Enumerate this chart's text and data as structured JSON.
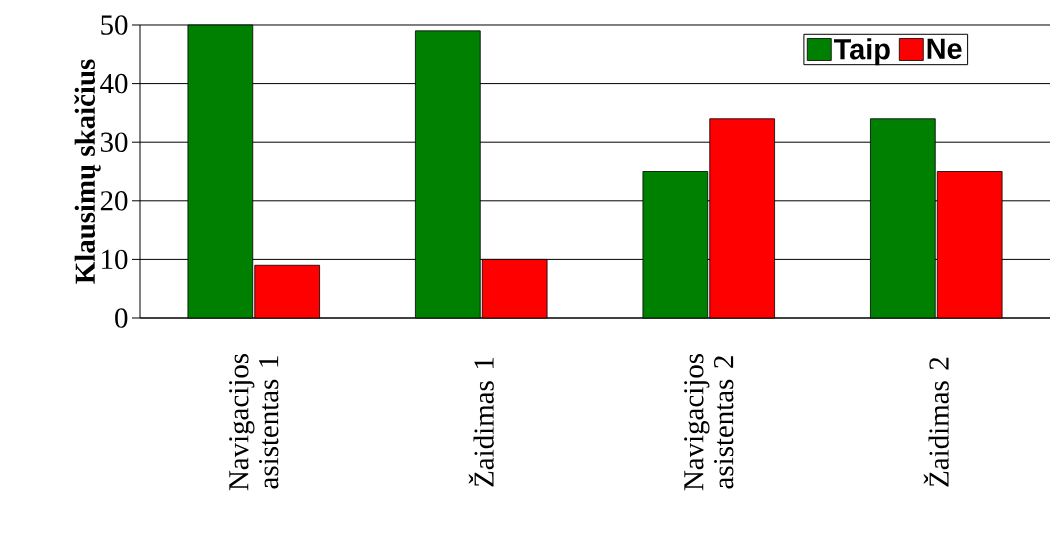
{
  "chart_data": {
    "type": "bar",
    "ylabel": "Klausimų skaičius",
    "categories": [
      "Navigacijos asistentas 1",
      "Žaidimas 1",
      "Navigacijos asistentas 2",
      "Žaidimas 2"
    ],
    "series": [
      {
        "name": "Taip",
        "color": "#008000",
        "values": [
          50,
          49,
          25,
          34
        ]
      },
      {
        "name": "Ne",
        "color": "#ff0000",
        "values": [
          9,
          10,
          34,
          25
        ]
      }
    ],
    "ylim": [
      0,
      50
    ],
    "yticks": [
      0,
      10,
      20,
      30,
      40,
      50
    ],
    "grid": "y",
    "legend": "top right"
  }
}
